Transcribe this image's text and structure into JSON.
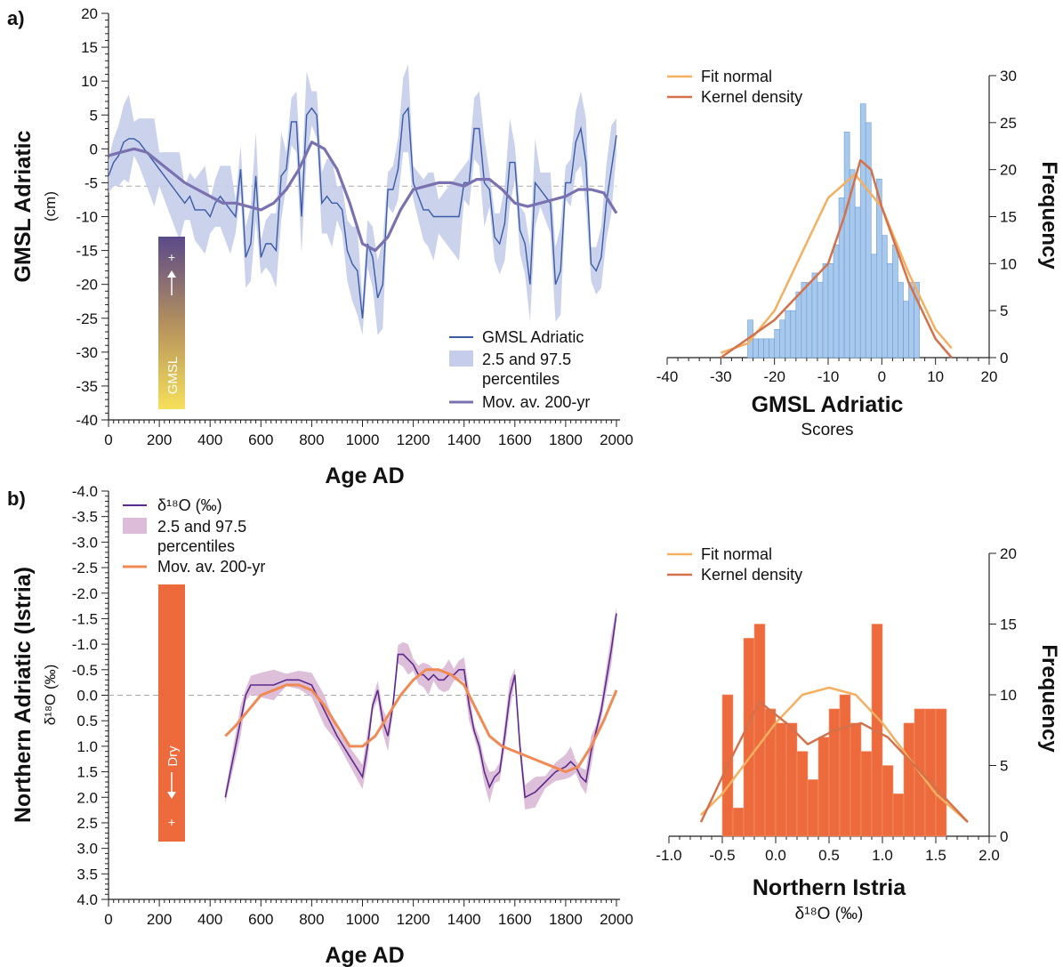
{
  "panels": {
    "a": {
      "letter": "a)",
      "ylabel": "GMSL Adriatic",
      "ylabel_unit": "(cm)",
      "xlabel": "Age AD",
      "bar_label": "GMSL",
      "bar_sign": "+",
      "legend": [
        "GMSL Adriatic",
        "2.5 and 97.5",
        "percentiles",
        "Mov. av. 200-yr"
      ]
    },
    "b": {
      "letter": "b)",
      "ylabel": "Northern Adriatic (Istria)",
      "ylabel_unit": "δ¹⁸O (‰)",
      "xlabel": "Age AD",
      "bar_label": "Dry",
      "bar_sign": "+",
      "legend": [
        "δ¹⁸O (‰)",
        "2.5 and 97.5",
        "percentiles",
        "Mov. av. 200-yr"
      ]
    },
    "a_hist": {
      "xlabel": "GMSL Adriatic",
      "xsublabel": "Scores",
      "ylabel": "Frequency",
      "legend": [
        "Fit normal",
        "Kernel density"
      ]
    },
    "b_hist": {
      "xlabel": "Northern Istria",
      "xsublabel": "δ¹⁸O (‰)",
      "ylabel": "Frequency",
      "legend": [
        "Fit normal",
        "Kernel density"
      ]
    }
  },
  "colors": {
    "gmsl_line": "#3b5ba5",
    "gmsl_band": "#c5cdea",
    "gmsl_movav": "#7a72b0",
    "d18o_line": "#5c2a8c",
    "d18o_band": "#dcbcd8",
    "d18o_movav": "#f08a55",
    "fit_normal": "#f4b060",
    "kernel": "#d4714a",
    "hist_a_bar": "#a8c8ec",
    "hist_a_edge": "#6a9ed6",
    "hist_b_bar": "#ec6a3c",
    "dry_bar": "#ec6a3c",
    "gmsl_grad_top": "#5a4a8a",
    "gmsl_grad_bottom": "#f6e05a"
  },
  "chart_data": [
    {
      "type": "line",
      "id": "a",
      "xlabel": "Age AD",
      "ylabel": "GMSL Adriatic",
      "xlim": [
        0,
        2000
      ],
      "ylim": [
        -40,
        20
      ],
      "xticks": [
        0,
        200,
        400,
        600,
        800,
        1000,
        1200,
        1400,
        1600,
        1800,
        2000
      ],
      "yticks": [
        20,
        15,
        10,
        5,
        0,
        -5,
        -10,
        -15,
        -20,
        -25,
        -30,
        -35,
        -40
      ],
      "reference_line": -5.5,
      "series": [
        {
          "name": "GMSL Adriatic",
          "x": [
            0,
            20,
            40,
            60,
            80,
            100,
            120,
            140,
            160,
            180,
            200,
            220,
            240,
            260,
            280,
            300,
            320,
            340,
            360,
            380,
            400,
            420,
            440,
            460,
            480,
            500,
            520,
            540,
            560,
            580,
            600,
            620,
            640,
            660,
            680,
            700,
            720,
            740,
            760,
            780,
            800,
            820,
            840,
            860,
            880,
            900,
            920,
            940,
            960,
            980,
            1000,
            1020,
            1040,
            1060,
            1080,
            1100,
            1120,
            1140,
            1160,
            1180,
            1200,
            1220,
            1240,
            1260,
            1280,
            1300,
            1320,
            1340,
            1360,
            1380,
            1400,
            1420,
            1440,
            1460,
            1480,
            1500,
            1520,
            1540,
            1560,
            1580,
            1600,
            1620,
            1640,
            1660,
            1680,
            1700,
            1720,
            1740,
            1760,
            1780,
            1800,
            1820,
            1840,
            1860,
            1880,
            1900,
            1920,
            1940,
            1960,
            1980,
            2000
          ],
          "values": [
            -4,
            -2,
            -1,
            1,
            1.5,
            1.5,
            1,
            0,
            -1,
            -2,
            -3,
            -4,
            -5,
            -6,
            -7,
            -8,
            -7,
            -9,
            -9,
            -9,
            -10,
            -8,
            -7,
            -8,
            -9,
            -10,
            -3,
            -16,
            -14,
            -4,
            -16,
            -14,
            -14,
            -15,
            -4,
            -3,
            4,
            4,
            -10,
            5,
            6,
            5,
            -8,
            -7,
            -8,
            -8,
            -9,
            -15,
            -17,
            -18,
            -25,
            -14,
            -16,
            -22,
            -20,
            -6,
            -6,
            -3,
            5,
            6,
            -5,
            -7,
            -9,
            -9,
            -10,
            -10,
            -10,
            -10,
            -10,
            -10,
            -5,
            -5,
            3,
            3,
            -5,
            -6,
            -13,
            -14,
            -11,
            -2,
            -2,
            -12,
            -14,
            -20,
            -5,
            -6,
            -7,
            -8,
            -20,
            -18,
            -5,
            -5,
            1,
            3,
            -2,
            -17,
            -18,
            -16,
            -8,
            -3,
            2
          ]
        },
        {
          "name": "Mov. av. 200-yr",
          "x": [
            0,
            50,
            100,
            150,
            200,
            250,
            300,
            350,
            400,
            450,
            500,
            550,
            600,
            650,
            700,
            750,
            800,
            850,
            900,
            950,
            1000,
            1050,
            1100,
            1150,
            1200,
            1250,
            1300,
            1350,
            1400,
            1450,
            1500,
            1550,
            1600,
            1650,
            1700,
            1750,
            1800,
            1850,
            1900,
            1950,
            2000
          ],
          "values": [
            -1,
            -0.5,
            0,
            -0.5,
            -2,
            -3.5,
            -5,
            -6,
            -7,
            -8,
            -8,
            -8.5,
            -9,
            -8,
            -6,
            -3,
            1,
            0,
            -3,
            -8,
            -14,
            -15,
            -13,
            -9,
            -6,
            -5.5,
            -5,
            -5,
            -5.5,
            -4.5,
            -4.5,
            -6,
            -8,
            -8.5,
            -8,
            -7.5,
            -7,
            -6,
            -6,
            -6.5,
            -9.5
          ]
        }
      ],
      "legend": [
        "GMSL Adriatic",
        "2.5 and 97.5 percentiles",
        "Mov. av. 200-yr"
      ]
    },
    {
      "type": "bar",
      "id": "a_hist",
      "xlabel": "GMSL Adriatic",
      "ylabel": "Frequency",
      "xlim": [
        -40,
        20
      ],
      "ylim": [
        0,
        30
      ],
      "xticks": [
        -40,
        -30,
        -20,
        -10,
        0,
        10,
        20
      ],
      "yticks": [
        0,
        5,
        10,
        15,
        20,
        25,
        30
      ],
      "bin_left": [
        -25,
        -24,
        -23,
        -22,
        -21,
        -20,
        -19,
        -18,
        -17,
        -16,
        -15,
        -14,
        -13,
        -12,
        -11,
        -10,
        -9,
        -8,
        -7,
        -6,
        -5,
        -4,
        -3,
        -2,
        -1,
        0,
        1,
        2,
        3,
        4,
        5,
        6
      ],
      "bin_width": 1,
      "values": [
        4,
        2,
        2,
        2,
        2,
        3,
        4,
        5,
        5,
        7,
        8,
        8,
        9,
        8,
        10,
        10,
        12,
        17,
        24,
        20,
        16,
        27,
        25,
        11,
        19,
        13,
        10,
        12,
        8,
        6,
        8,
        8
      ],
      "lines": {
        "Fit normal": {
          "x": [
            -30,
            -25,
            -20,
            -15,
            -10,
            -5,
            0,
            5,
            10,
            13
          ],
          "values": [
            0.5,
            1.5,
            5,
            11,
            17,
            19.5,
            16,
            9,
            3,
            1
          ]
        },
        "Kernel density": {
          "x": [
            -30,
            -25,
            -20,
            -15,
            -10,
            -7,
            -4,
            -2,
            0,
            5,
            10,
            13
          ],
          "values": [
            0,
            2,
            4,
            7,
            10,
            15,
            21,
            20,
            16,
            8,
            2,
            0
          ]
        }
      },
      "legend": [
        "Fit normal",
        "Kernel density"
      ]
    },
    {
      "type": "line",
      "id": "b",
      "xlabel": "Age AD",
      "ylabel": "Northern Adriatic (Istria)",
      "xlim": [
        0,
        2000
      ],
      "ylim": [
        4.0,
        -4.0
      ],
      "xticks": [
        0,
        200,
        400,
        600,
        800,
        1000,
        1200,
        1400,
        1600,
        1800,
        2000
      ],
      "yticks": [
        -4.0,
        -3.5,
        -3.0,
        -2.5,
        -2.0,
        -1.5,
        -1.0,
        -0.5,
        0.0,
        0.5,
        1.0,
        1.5,
        2.0,
        2.5,
        3.0,
        3.5,
        4.0
      ],
      "reference_line": 0.0,
      "series": [
        {
          "name": "δ¹⁸O (‰)",
          "x": [
            460,
            480,
            500,
            520,
            540,
            560,
            600,
            650,
            700,
            750,
            800,
            850,
            900,
            950,
            1000,
            1020,
            1040,
            1060,
            1080,
            1100,
            1120,
            1140,
            1160,
            1180,
            1200,
            1220,
            1240,
            1260,
            1280,
            1300,
            1320,
            1340,
            1360,
            1380,
            1400,
            1420,
            1440,
            1460,
            1480,
            1500,
            1520,
            1540,
            1560,
            1580,
            1600,
            1620,
            1640,
            1680,
            1720,
            1760,
            1800,
            1820,
            1840,
            1860,
            1880,
            1900,
            1920,
            1940,
            1960,
            1980,
            2000
          ],
          "values": [
            2.0,
            1.5,
            1.0,
            0.5,
            0.0,
            -0.2,
            -0.2,
            -0.2,
            -0.3,
            -0.3,
            -0.2,
            0.3,
            0.8,
            1.2,
            1.6,
            1.0,
            0.2,
            -0.1,
            0.5,
            0.8,
            0.2,
            -0.8,
            -0.8,
            -0.7,
            -0.6,
            -0.4,
            -0.4,
            -0.3,
            -0.4,
            -0.3,
            -0.3,
            -0.4,
            -0.4,
            -0.5,
            -0.5,
            0.2,
            0.7,
            1.0,
            1.5,
            1.8,
            1.6,
            1.5,
            0.8,
            0.0,
            -0.4,
            1.0,
            2.0,
            1.9,
            1.7,
            1.5,
            1.4,
            1.3,
            1.4,
            1.6,
            1.7,
            1.1,
            0.7,
            0.3,
            -0.3,
            -0.9,
            -1.6
          ]
        },
        {
          "name": "Mov. av. 200-yr",
          "x": [
            460,
            500,
            550,
            600,
            650,
            700,
            750,
            800,
            850,
            900,
            950,
            1000,
            1050,
            1100,
            1150,
            1200,
            1250,
            1300,
            1350,
            1400,
            1450,
            1500,
            1550,
            1600,
            1650,
            1700,
            1750,
            1800,
            1850,
            1900,
            1950,
            2000
          ],
          "values": [
            0.8,
            0.6,
            0.3,
            0.0,
            -0.1,
            -0.2,
            -0.2,
            -0.1,
            0.2,
            0.6,
            1.0,
            1.0,
            0.8,
            0.4,
            0.0,
            -0.3,
            -0.5,
            -0.5,
            -0.4,
            -0.2,
            0.3,
            0.8,
            1.0,
            1.1,
            1.2,
            1.3,
            1.4,
            1.5,
            1.4,
            1.0,
            0.5,
            -0.1
          ]
        }
      ],
      "legend": [
        "δ¹⁸O (‰)",
        "2.5 and 97.5 percentiles",
        "Mov. av. 200-yr"
      ]
    },
    {
      "type": "bar",
      "id": "b_hist",
      "xlabel": "Northern Istria",
      "ylabel": "Frequency",
      "xlim": [
        -1.0,
        2.0
      ],
      "ylim": [
        0,
        20
      ],
      "xticks": [
        -1.0,
        -0.5,
        0.0,
        0.5,
        1.0,
        1.5,
        2.0
      ],
      "yticks": [
        0,
        5,
        10,
        15,
        20
      ],
      "bin_left": [
        -0.5,
        -0.4,
        -0.3,
        -0.2,
        -0.1,
        0.0,
        0.1,
        0.2,
        0.3,
        0.4,
        0.5,
        0.6,
        0.7,
        0.8,
        0.9,
        1.0,
        1.1,
        1.2,
        1.3,
        1.4,
        1.5
      ],
      "bin_width": 0.1,
      "values": [
        10,
        2,
        14,
        15,
        9,
        8,
        8,
        6,
        4,
        7,
        9,
        10,
        8,
        6,
        15,
        5,
        3,
        8,
        9,
        9,
        9
      ],
      "lines": {
        "Fit normal": {
          "x": [
            -0.7,
            -0.5,
            -0.25,
            0.0,
            0.25,
            0.5,
            0.75,
            1.0,
            1.25,
            1.5,
            1.8
          ],
          "values": [
            1.5,
            3,
            5.5,
            8,
            10,
            10.5,
            10,
            8,
            5.5,
            3,
            1
          ]
        },
        "Kernel density": {
          "x": [
            -0.7,
            -0.45,
            -0.15,
            0.1,
            0.3,
            0.55,
            0.8,
            1.05,
            1.3,
            1.55,
            1.8
          ],
          "values": [
            1,
            5,
            9.5,
            8,
            6.5,
            7.5,
            8,
            7,
            5,
            3,
            1
          ]
        }
      },
      "legend": [
        "Fit normal",
        "Kernel density"
      ]
    }
  ]
}
